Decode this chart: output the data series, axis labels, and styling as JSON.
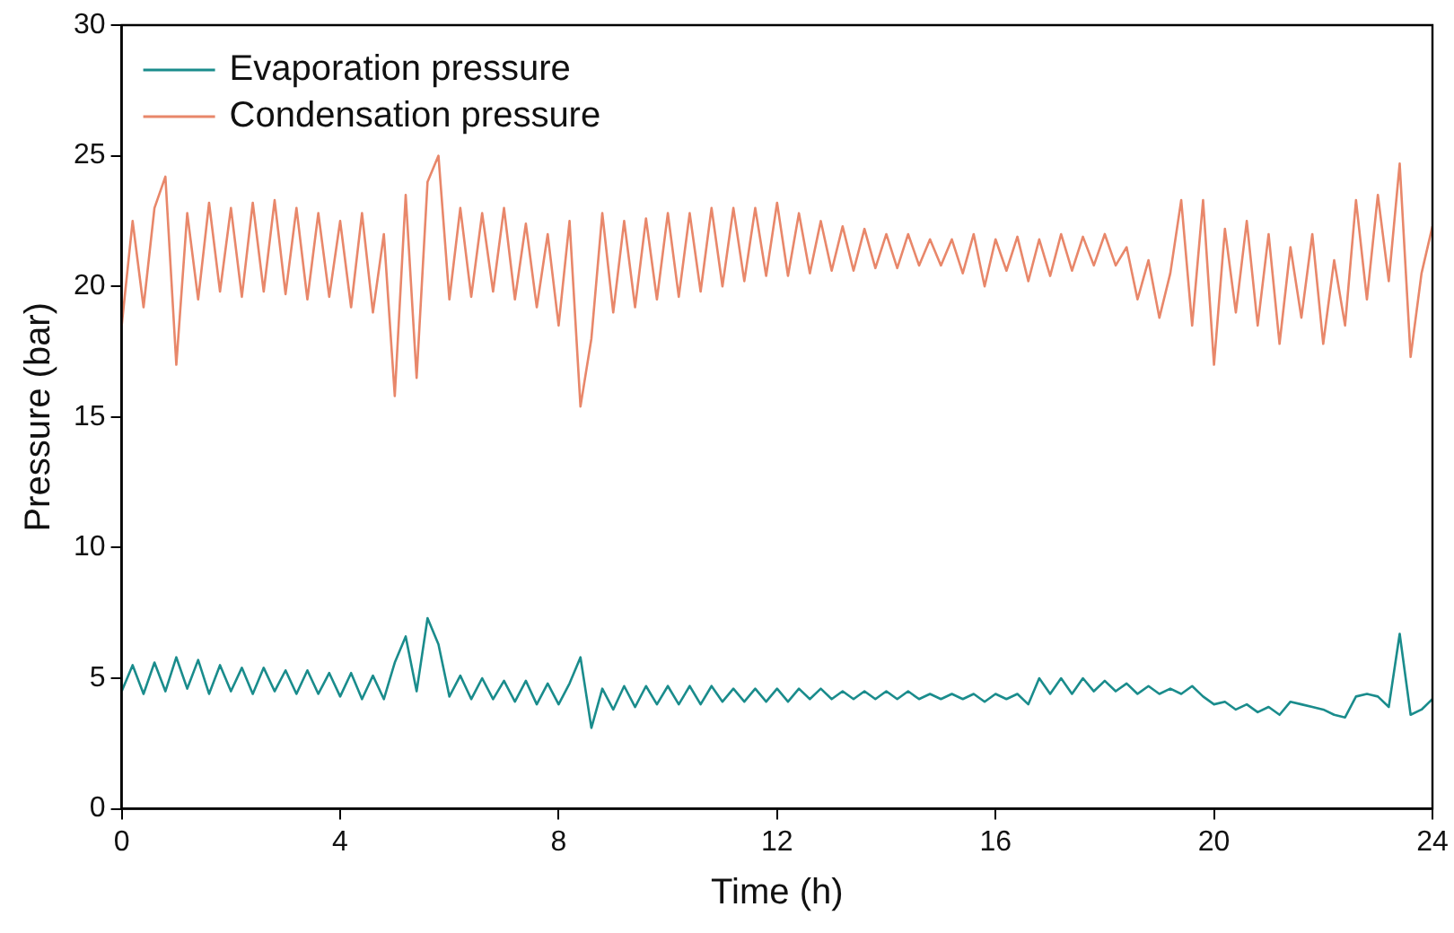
{
  "chart_data": {
    "type": "line",
    "xlabel": "Time (h)",
    "ylabel": "Pressure (bar)",
    "xlim": [
      0,
      24
    ],
    "xticks": [
      0,
      4,
      8,
      12,
      16,
      20,
      24
    ],
    "ylim": [
      0,
      30
    ],
    "yticks": [
      0,
      5,
      10,
      15,
      20,
      25,
      30
    ],
    "grid": false,
    "legend": "top left",
    "marker": "none",
    "line_style": "solid",
    "x": [
      0,
      0.2,
      0.4,
      0.6,
      0.8,
      1,
      1.2,
      1.4,
      1.6,
      1.8,
      2,
      2.2,
      2.4,
      2.6,
      2.8,
      3,
      3.2,
      3.4,
      3.6,
      3.8,
      4,
      4.2,
      4.4,
      4.6,
      4.8,
      5,
      5.2,
      5.4,
      5.6,
      5.8,
      6,
      6.2,
      6.4,
      6.6,
      6.8,
      7,
      7.2,
      7.4,
      7.6,
      7.8,
      8,
      8.2,
      8.4,
      8.6,
      8.8,
      9,
      9.2,
      9.4,
      9.6,
      9.8,
      10,
      10.2,
      10.4,
      10.6,
      10.8,
      11,
      11.2,
      11.4,
      11.6,
      11.8,
      12,
      12.2,
      12.4,
      12.6,
      12.8,
      13,
      13.2,
      13.4,
      13.6,
      13.8,
      14,
      14.2,
      14.4,
      14.6,
      14.8,
      15,
      15.2,
      15.4,
      15.6,
      15.8,
      16,
      16.2,
      16.4,
      16.6,
      16.8,
      17,
      17.2,
      17.4,
      17.6,
      17.8,
      18,
      18.2,
      18.4,
      18.6,
      18.8,
      19,
      19.2,
      19.4,
      19.6,
      19.8,
      20,
      20.2,
      20.4,
      20.6,
      20.8,
      21,
      21.2,
      21.4,
      21.6,
      21.8,
      22,
      22.2,
      22.4,
      22.6,
      22.8,
      23,
      23.2,
      23.4,
      23.6,
      23.8,
      24
    ],
    "series": [
      {
        "name": "Evaporation pressure",
        "color": "#1a8c8c",
        "values": [
          4.5,
          5.5,
          4.4,
          5.6,
          4.5,
          5.8,
          4.6,
          5.7,
          4.4,
          5.5,
          4.5,
          5.4,
          4.4,
          5.4,
          4.5,
          5.3,
          4.4,
          5.3,
          4.4,
          5.2,
          4.3,
          5.2,
          4.2,
          5.1,
          4.2,
          5.6,
          6.6,
          4.5,
          7.3,
          6.3,
          4.3,
          5.1,
          4.2,
          5,
          4.2,
          4.9,
          4.1,
          4.9,
          4,
          4.8,
          4,
          4.8,
          5.8,
          3.1,
          4.6,
          3.8,
          4.7,
          3.9,
          4.7,
          4,
          4.7,
          4,
          4.7,
          4,
          4.7,
          4.1,
          4.6,
          4.1,
          4.6,
          4.1,
          4.6,
          4.1,
          4.6,
          4.2,
          4.6,
          4.2,
          4.5,
          4.2,
          4.5,
          4.2,
          4.5,
          4.2,
          4.5,
          4.2,
          4.4,
          4.2,
          4.4,
          4.2,
          4.4,
          4.1,
          4.4,
          4.2,
          4.4,
          4,
          5,
          4.4,
          5,
          4.4,
          5,
          4.5,
          4.9,
          4.5,
          4.8,
          4.4,
          4.7,
          4.4,
          4.6,
          4.4,
          4.7,
          4.3,
          4,
          4.1,
          3.8,
          4,
          3.7,
          3.9,
          3.6,
          4.1,
          4,
          3.9,
          3.8,
          3.6,
          3.5,
          4.3,
          4.4,
          4.3,
          3.9,
          6.7,
          3.6,
          3.8,
          4.2
        ]
      },
      {
        "name": "Condensation pressure",
        "color": "#e8876a",
        "values": [
          18.5,
          22.5,
          19.2,
          23,
          24.2,
          17,
          22.8,
          19.5,
          23.2,
          19.8,
          23,
          19.6,
          23.2,
          19.8,
          23.3,
          19.7,
          23,
          19.5,
          22.8,
          19.6,
          22.5,
          19.2,
          22.8,
          19,
          22,
          15.8,
          23.5,
          16.5,
          24,
          25,
          19.5,
          23,
          19.6,
          22.8,
          19.8,
          23,
          19.5,
          22.4,
          19.2,
          22,
          18.5,
          22.5,
          15.4,
          18,
          22.8,
          19,
          22.5,
          19.2,
          22.6,
          19.5,
          22.8,
          19.6,
          22.8,
          19.8,
          23,
          20,
          23,
          20.2,
          23,
          20.4,
          23.2,
          20.4,
          22.8,
          20.5,
          22.5,
          20.6,
          22.3,
          20.6,
          22.2,
          20.7,
          22,
          20.7,
          22,
          20.8,
          21.8,
          20.8,
          21.8,
          20.5,
          22,
          20,
          21.8,
          20.6,
          21.9,
          20.2,
          21.8,
          20.4,
          22,
          20.6,
          21.9,
          20.8,
          22,
          20.8,
          21.5,
          19.5,
          21,
          18.8,
          20.5,
          23.3,
          18.5,
          23.3,
          17,
          22.2,
          19,
          22.5,
          18.5,
          22,
          17.8,
          21.5,
          18.8,
          22,
          17.8,
          21,
          18.5,
          23.3,
          19.5,
          23.5,
          20.2,
          24.7,
          17.3,
          20.5,
          22.3
        ]
      }
    ]
  }
}
